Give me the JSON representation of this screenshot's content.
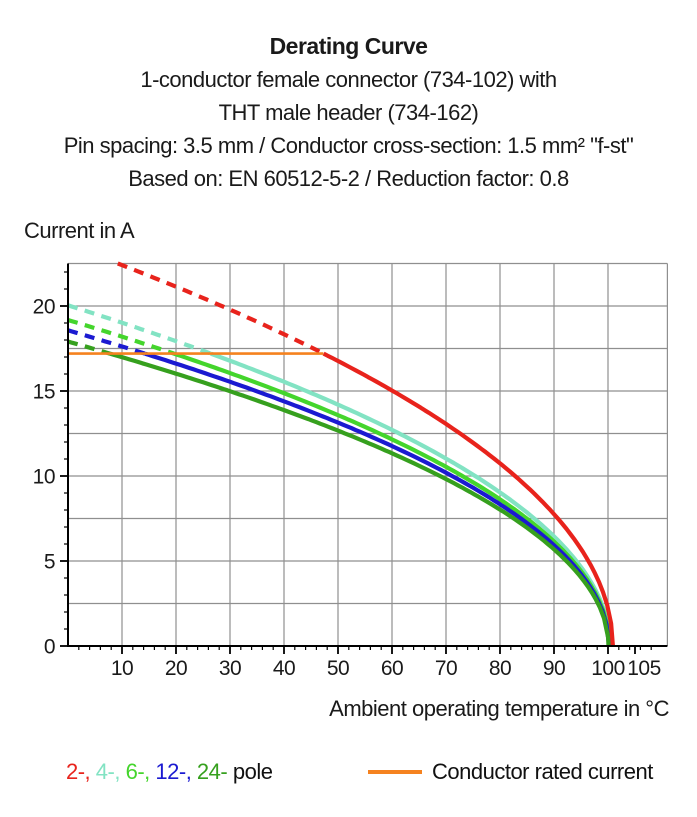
{
  "header": {
    "title": "Derating Curve",
    "lines": [
      "1-conductor female connector (734-102) with",
      "THT male header (734-162)",
      "Pin spacing: 3.5 mm / Conductor cross-section: 1.5 mm² \"f-st\"",
      "Based on: EN 60512-5-2 / Reduction factor: 0.8"
    ]
  },
  "legend": {
    "pole_items": [
      {
        "label": "2-,",
        "color": "#e8231c"
      },
      {
        "label": "4-,",
        "color": "#82e3c3"
      },
      {
        "label": "6-,",
        "color": "#44d52c"
      },
      {
        "label": "12-,",
        "color": "#1b1ad1"
      },
      {
        "label": "24-",
        "color": "#36a01e"
      }
    ],
    "pole_suffix": "pole",
    "rated_current_label": "Conductor rated current"
  },
  "chart_data": {
    "type": "line",
    "title": "Derating Curve",
    "xlabel": "Ambient operating temperature in °C",
    "ylabel": "Current in A",
    "xlim": [
      0,
      111
    ],
    "ylim": [
      0,
      22.5
    ],
    "x_major_ticks": [
      10,
      20,
      30,
      40,
      50,
      60,
      70,
      80,
      90,
      100,
      105
    ],
    "x_minor_step": 2,
    "y_major_ticks": [
      0,
      5,
      10,
      15,
      20
    ],
    "y_minor_step": 1,
    "grid_x_step": 10,
    "grid_y_step": 2.5,
    "grid_on": true,
    "grid_color": "#8f8f8f",
    "axis_color": "#000000",
    "legend_position": "bottom",
    "rated_current": {
      "label": "Conductor rated current",
      "value": 17.2,
      "t_start": 0,
      "t_end": 47.3,
      "color": "#f5821f"
    },
    "dashed_above_current": 17.2,
    "curve_model": "I(T) = k * sqrt(t_end - T); dashed where I > rated current",
    "series": [
      {
        "name": "4-pole",
        "color": "#82e3c3",
        "k": 2.0,
        "t_end": 100.4,
        "points": [
          [
            0,
            20.04
          ],
          [
            10,
            19.02
          ],
          [
            20,
            17.93
          ],
          [
            30,
            16.78
          ],
          [
            40,
            15.54
          ],
          [
            50,
            14.2
          ],
          [
            60,
            12.71
          ],
          [
            70,
            11.03
          ],
          [
            80,
            9.03
          ],
          [
            90,
            6.45
          ],
          [
            100,
            1.26
          ],
          [
            100.4,
            0
          ]
        ]
      },
      {
        "name": "6-pole",
        "color": "#44d52c",
        "k": 1.915,
        "t_end": 100.3,
        "points": [
          [
            0,
            19.18
          ],
          [
            10,
            18.2
          ],
          [
            20,
            17.16
          ],
          [
            30,
            16.05
          ],
          [
            40,
            14.87
          ],
          [
            50,
            13.58
          ],
          [
            60,
            12.16
          ],
          [
            70,
            10.54
          ],
          [
            80,
            8.63
          ],
          [
            90,
            6.15
          ],
          [
            100,
            1.05
          ],
          [
            100.3,
            0
          ]
        ]
      },
      {
        "name": "12-pole",
        "color": "#1b1ad1",
        "k": 1.855,
        "t_end": 100.2,
        "points": [
          [
            0,
            18.57
          ],
          [
            10,
            17.62
          ],
          [
            20,
            16.61
          ],
          [
            30,
            15.54
          ],
          [
            40,
            14.39
          ],
          [
            50,
            13.14
          ],
          [
            60,
            11.76
          ],
          [
            70,
            10.19
          ],
          [
            80,
            8.34
          ],
          [
            90,
            5.93
          ],
          [
            100,
            0.83
          ],
          [
            100.2,
            0
          ]
        ]
      },
      {
        "name": "24-pole",
        "color": "#36a01e",
        "k": 1.79,
        "t_end": 100.1,
        "points": [
          [
            0,
            17.91
          ],
          [
            10,
            17.0
          ],
          [
            20,
            16.02
          ],
          [
            30,
            14.98
          ],
          [
            40,
            13.87
          ],
          [
            50,
            12.67
          ],
          [
            60,
            11.34
          ],
          [
            70,
            9.82
          ],
          [
            80,
            8.03
          ],
          [
            90,
            5.69
          ],
          [
            100,
            0.57
          ],
          [
            100.1,
            0
          ]
        ]
      },
      {
        "name": "2-pole",
        "color": "#e8231c",
        "k": 2.35,
        "t_end": 100.9,
        "points": [
          [
            10,
            22.41
          ],
          [
            20,
            21.14
          ],
          [
            30,
            19.79
          ],
          [
            40,
            18.34
          ],
          [
            50,
            16.77
          ],
          [
            60,
            15.03
          ],
          [
            70,
            13.06
          ],
          [
            80,
            10.74
          ],
          [
            90,
            7.76
          ],
          [
            100,
            2.23
          ],
          [
            100.9,
            0
          ]
        ]
      }
    ]
  }
}
